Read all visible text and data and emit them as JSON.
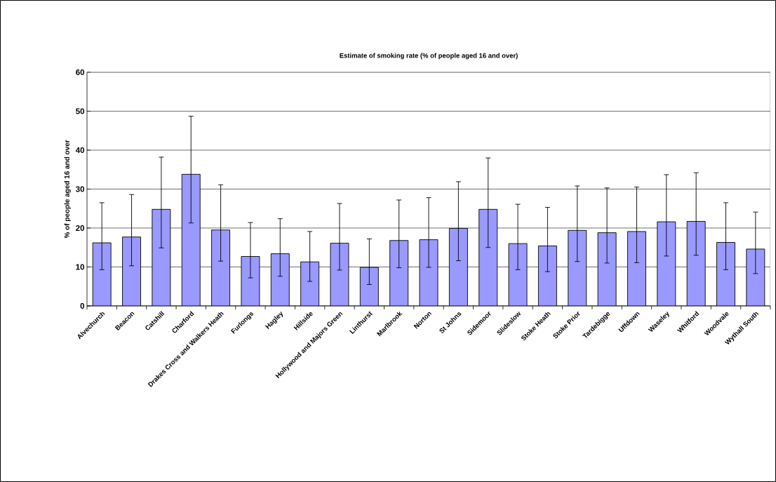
{
  "chart_data": {
    "type": "bar",
    "title": "Estimate of smoking rate (% of people aged 16 and over)",
    "ylabel": "% of people aged 16 and over",
    "categories": [
      "Alvechurch",
      "Beacon",
      "Catshill",
      "Charford",
      "Drakes Cross and Walkers Heath",
      "Furlongs",
      "Hagley",
      "Hillside",
      "Hollywood and Majors Green",
      "Linthurst",
      "Marlbrook",
      "Norton",
      "St Johns",
      "Sidemoor",
      "Slideslow",
      "Stoke Heath",
      "Stoke Prior",
      "Tardebigge",
      "Uffdown",
      "Waseley",
      "Whitford",
      "Woodvale",
      "Wythall South"
    ],
    "values": [
      16.2,
      17.7,
      24.8,
      33.8,
      19.5,
      12.7,
      13.4,
      11.3,
      16.1,
      9.9,
      16.8,
      17.0,
      19.9,
      24.8,
      16.0,
      15.4,
      19.4,
      18.8,
      19.1,
      21.6,
      21.7,
      16.3,
      14.6
    ],
    "errors": [
      [
        9.3,
        26.5
      ],
      [
        10.3,
        28.6
      ],
      [
        14.9,
        38.2
      ],
      [
        21.3,
        48.7
      ],
      [
        11.5,
        31.1
      ],
      [
        7.2,
        21.4
      ],
      [
        7.6,
        22.4
      ],
      [
        6.3,
        19.1
      ],
      [
        9.2,
        26.3
      ],
      [
        5.5,
        17.2
      ],
      [
        9.8,
        27.2
      ],
      [
        9.9,
        27.8
      ],
      [
        11.6,
        31.9
      ],
      [
        15.0,
        38.0
      ],
      [
        9.3,
        26.1
      ],
      [
        8.8,
        25.3
      ],
      [
        11.4,
        30.8
      ],
      [
        11.0,
        30.3
      ],
      [
        11.1,
        30.5
      ],
      [
        12.8,
        33.7
      ],
      [
        13.0,
        34.2
      ],
      [
        9.3,
        26.5
      ],
      [
        8.3,
        24.1
      ]
    ],
    "color": "#9999ff",
    "ylim": [
      0,
      60
    ],
    "yticks": [
      0,
      10,
      20,
      30,
      40,
      50,
      60
    ],
    "grid": "y"
  }
}
